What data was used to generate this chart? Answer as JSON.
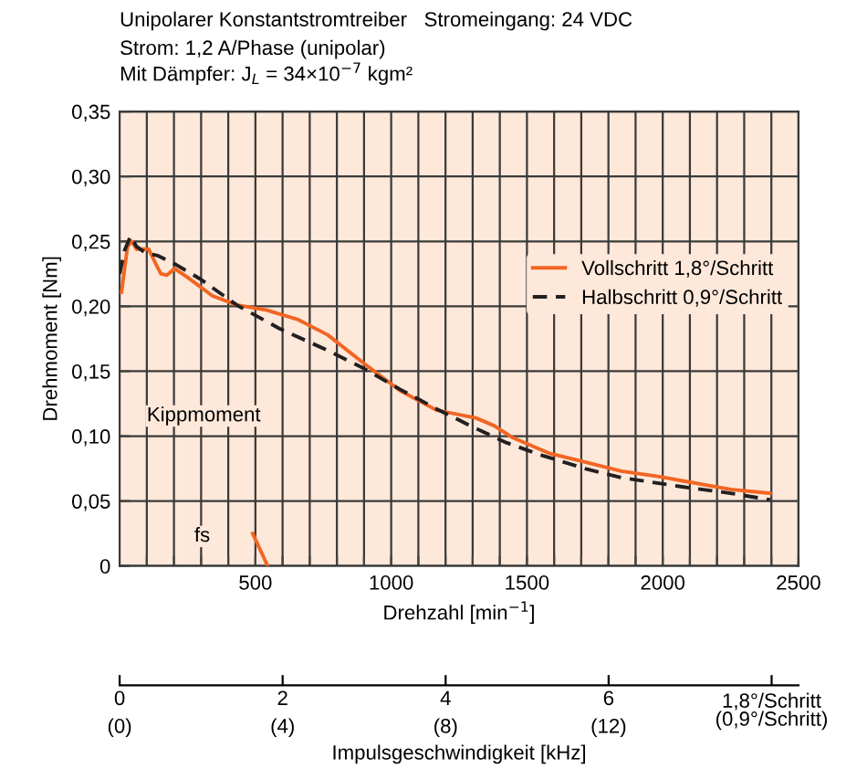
{
  "chart_data": {
    "type": "line",
    "title": "Unipolarer Konstantstromtreiber   Stromeingang: 24 VDC",
    "subtitle": "Strom: 1,2 A/Phase (unipolar)\nMit Dämpfer: J$_{L}$ = 34×10$^{−7}$ kgm²",
    "xlabel": "Drehzahl [min$^{−1}$]",
    "ylabel": "Drehmoment [Nm]",
    "x2label": "Impulsgeschwindigkeit [kHz]",
    "xlim": [
      0,
      2500
    ],
    "ylim": [
      0,
      0.35
    ],
    "xticks": [
      {
        "value": 100,
        "label": null
      },
      {
        "value": 200,
        "label": null
      },
      {
        "value": 300,
        "label": null
      },
      {
        "value": 400,
        "label": null
      },
      500,
      {
        "value": 600,
        "label": null
      },
      {
        "value": 700,
        "label": null
      },
      {
        "value": 800,
        "label": null
      },
      {
        "value": 900,
        "label": null
      },
      1000,
      {
        "value": 1100,
        "label": null
      },
      {
        "value": 1200,
        "label": null
      },
      {
        "value": 1300,
        "label": null
      },
      {
        "value": 1400,
        "label": null
      },
      1500,
      {
        "value": 1600,
        "label": null
      },
      {
        "value": 1700,
        "label": null
      },
      {
        "value": 1800,
        "label": null
      },
      {
        "value": 1900,
        "label": null
      },
      2000,
      {
        "value": 2100,
        "label": null
      },
      {
        "value": 2200,
        "label": null
      },
      {
        "value": 2300,
        "label": null
      },
      {
        "value": 2400,
        "label": null
      },
      2500
    ],
    "yticks": [
      {
        "value": 0,
        "label": "0"
      },
      {
        "value": 0.05,
        "label": "0,05"
      },
      {
        "value": 0.1,
        "label": "0,10"
      },
      {
        "value": 0.15,
        "label": "0,15"
      },
      {
        "value": 0.2,
        "label": "0,20"
      },
      {
        "value": 0.25,
        "label": "0,25"
      },
      {
        "value": 0.3,
        "label": "0,30"
      },
      {
        "value": 0.35,
        "label": "0,35"
      }
    ],
    "x2lim": [
      0,
      8.33
    ],
    "x2ticks": [
      0,
      2,
      4,
      6,
      {
        "value": 8,
        "label": null
      }
    ],
    "grid": true,
    "legend": "right",
    "series": [
      {
        "name": "Vollschritt 1,8°/Schritt",
        "color": "#f26522",
        "line_style": "solid",
        "x": [
          7,
          29,
          45,
          62,
          107,
          130,
          152,
          174,
          203,
          252,
          342,
          431,
          542,
          654,
          766,
          900,
          1033,
          1167,
          1312,
          1379,
          1446,
          1580,
          1714,
          1848,
          1982,
          2116,
          2250,
          2395
        ],
        "values": [
          0.211,
          0.246,
          0.25,
          0.244,
          0.244,
          0.234,
          0.225,
          0.224,
          0.229,
          0.222,
          0.208,
          0.201,
          0.197,
          0.19,
          0.178,
          0.156,
          0.135,
          0.12,
          0.114,
          0.108,
          0.099,
          0.087,
          0.08,
          0.073,
          0.069,
          0.064,
          0.059,
          0.056
        ]
      },
      {
        "name": "Halbschritt 0,9°/Schritt",
        "color": "#231f20",
        "line_style": "dashed",
        "x": [
          0,
          18,
          40,
          62,
          96,
          141,
          208,
          297,
          431,
          587,
          766,
          900,
          1033,
          1167,
          1301,
          1424,
          1558,
          1714,
          1848,
          2071,
          2250,
          2395
        ],
        "values": [
          0.225,
          0.243,
          0.254,
          0.246,
          0.241,
          0.239,
          0.232,
          0.221,
          0.201,
          0.183,
          0.166,
          0.152,
          0.136,
          0.121,
          0.107,
          0.095,
          0.085,
          0.075,
          0.068,
          0.061,
          0.056,
          0.051
        ]
      },
      {
        "color": "#f26522",
        "line_style": "solid",
        "x": [
          490,
          545
        ],
        "values": [
          0.025,
          0
        ]
      }
    ],
    "annotations": [
      "Kippmoment",
      "fs",
      "(0)",
      "(4)",
      "(8)",
      "(12)",
      "1,8°/Schritt\n(0,9°/Schritt)"
    ]
  }
}
